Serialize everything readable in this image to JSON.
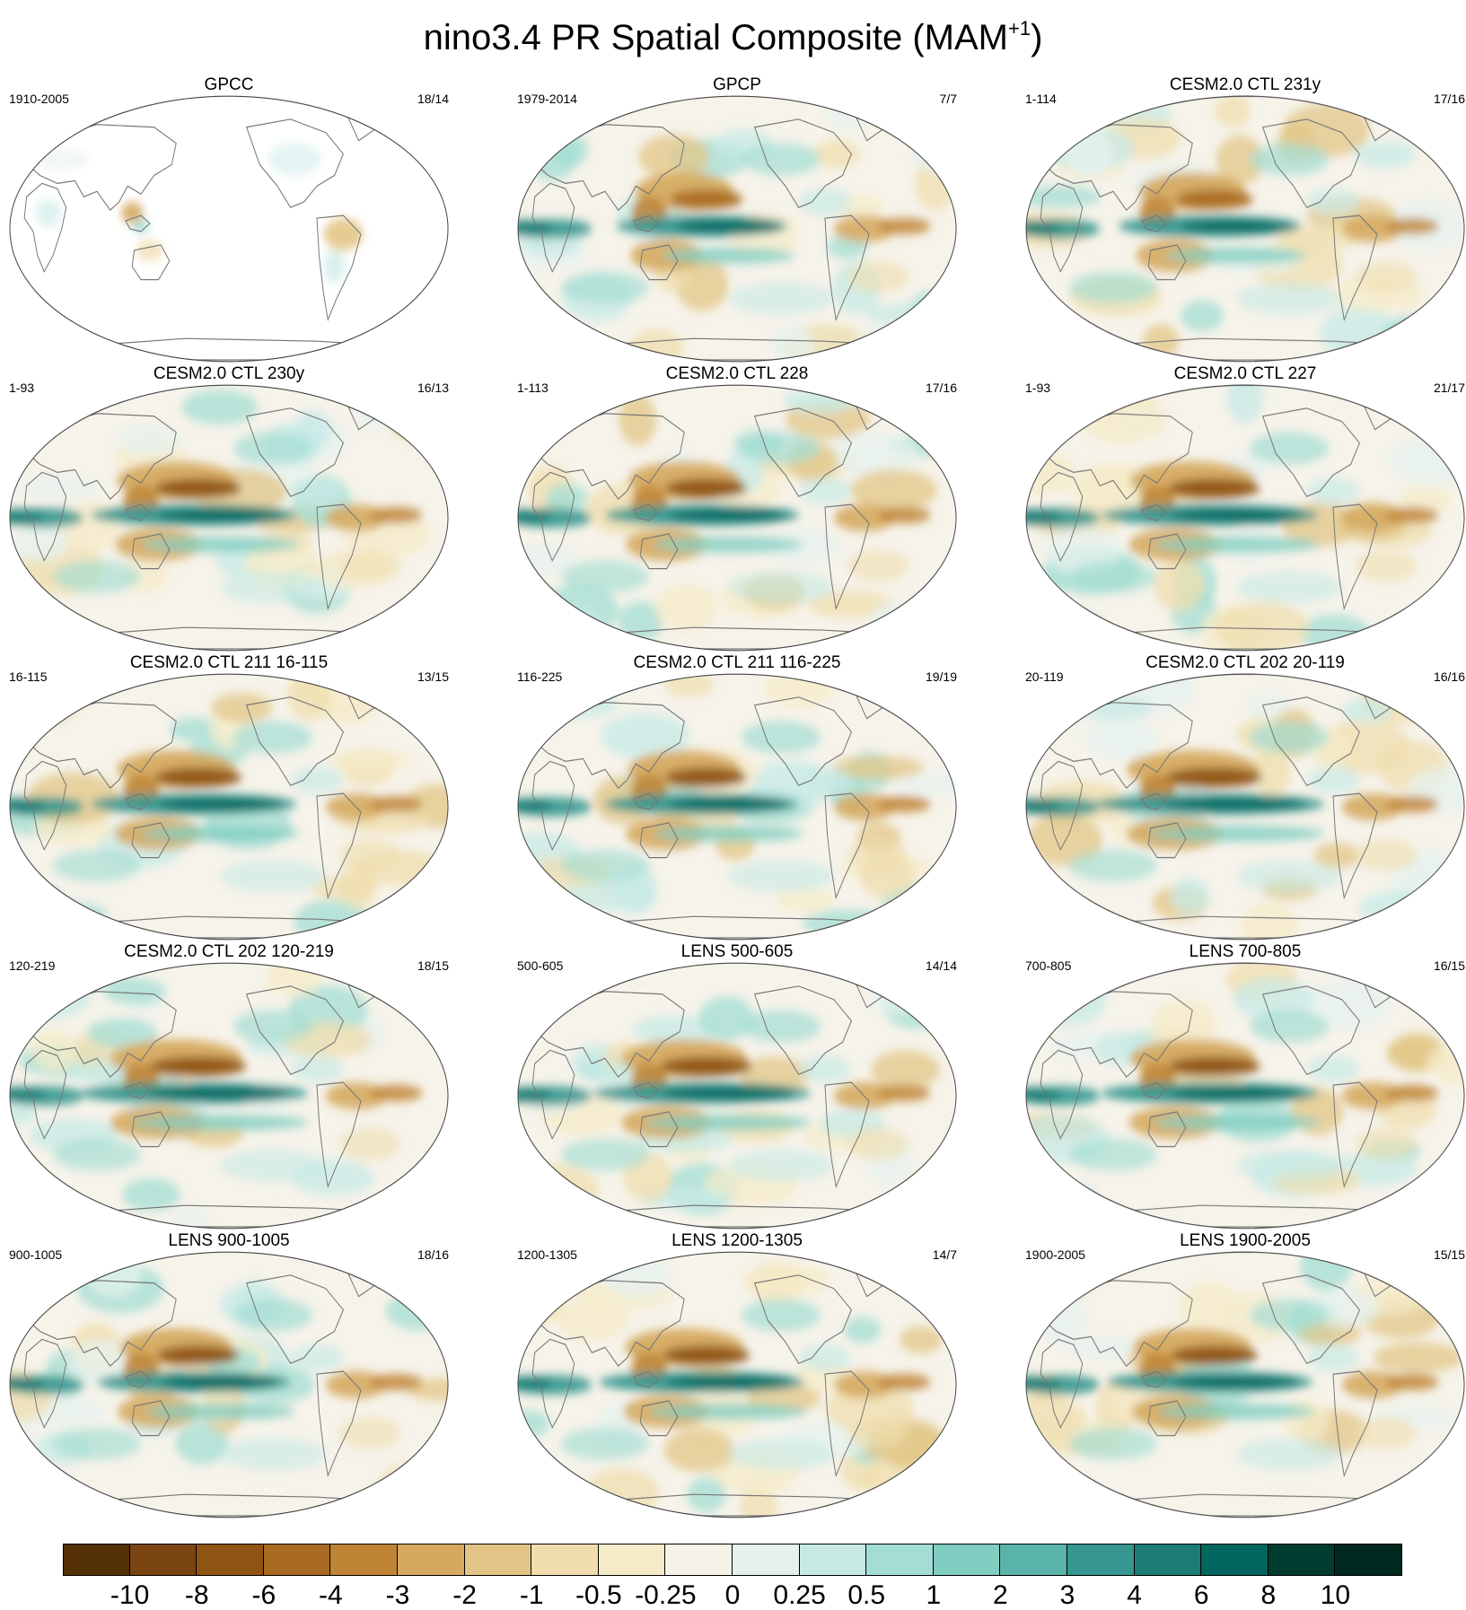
{
  "title": "nino3.4 PR Spatial Composite (MAM",
  "title_superscript": "+1",
  "title_close": ")",
  "panels": [
    {
      "title": "GPCC",
      "period": "1910-2005",
      "count": "18/14",
      "kind": "obs-land",
      "strength": 0.35
    },
    {
      "title": "GPCP",
      "period": "1979-2014",
      "count": "7/7",
      "kind": "obs",
      "strength": 0.75
    },
    {
      "title": "CESM2.0 CTL 231y",
      "period": "1-114",
      "count": "17/16",
      "kind": "model",
      "strength": 0.8
    },
    {
      "title": "CESM2.0 CTL 230y",
      "period": "1-93",
      "count": "16/13",
      "kind": "model",
      "strength": 0.9
    },
    {
      "title": "CESM2.0 CTL 228",
      "period": "1-113",
      "count": "17/16",
      "kind": "model",
      "strength": 0.85
    },
    {
      "title": "CESM2.0 CTL 227",
      "period": "1-93",
      "count": "21/17",
      "kind": "model",
      "strength": 0.95
    },
    {
      "title": "CESM2.0 CTL 211 16-115",
      "period": "16-115",
      "count": "13/15",
      "kind": "model",
      "strength": 0.9
    },
    {
      "title": "CESM2.0 CTL 211 116-225",
      "period": "116-225",
      "count": "19/19",
      "kind": "model",
      "strength": 0.85
    },
    {
      "title": "CESM2.0 CTL 202 20-119",
      "period": "20-119",
      "count": "16/16",
      "kind": "model",
      "strength": 1.0
    },
    {
      "title": "CESM2.0 CTL 202 120-219",
      "period": "120-219",
      "count": "18/15",
      "kind": "model",
      "strength": 1.0
    },
    {
      "title": "LENS 500-605",
      "period": "500-605",
      "count": "14/14",
      "kind": "model",
      "strength": 0.95
    },
    {
      "title": "LENS 700-805",
      "period": "700-805",
      "count": "16/15",
      "kind": "model",
      "strength": 0.95
    },
    {
      "title": "LENS 900-1005",
      "period": "900-1005",
      "count": "18/16",
      "kind": "model",
      "strength": 0.85
    },
    {
      "title": "LENS 1200-1305",
      "period": "1200-1305",
      "count": "14/7",
      "kind": "model",
      "strength": 0.9
    },
    {
      "title": "LENS 1900-2005",
      "period": "1900-2005",
      "count": "15/15",
      "kind": "model",
      "strength": 0.9
    }
  ],
  "colorbar": {
    "labels": [
      "-10",
      "-8",
      "-6",
      "-4",
      "-3",
      "-2",
      "-1",
      "-0.5",
      "-0.25",
      "0",
      "0.25",
      "0.5",
      "1",
      "2",
      "3",
      "4",
      "6",
      "8",
      "10"
    ],
    "colors": [
      "#543005",
      "#7a4510",
      "#8f5414",
      "#a96b22",
      "#bf8435",
      "#d5aa60",
      "#e2c586",
      "#efddae",
      "#f6ebc8",
      "#f5f2e8",
      "#e6f1ee",
      "#c7eae5",
      "#a3ddd3",
      "#80cdc1",
      "#5ab4a9",
      "#35978f",
      "#1b7d74",
      "#01665e",
      "#003c30",
      "#00291f"
    ]
  }
}
